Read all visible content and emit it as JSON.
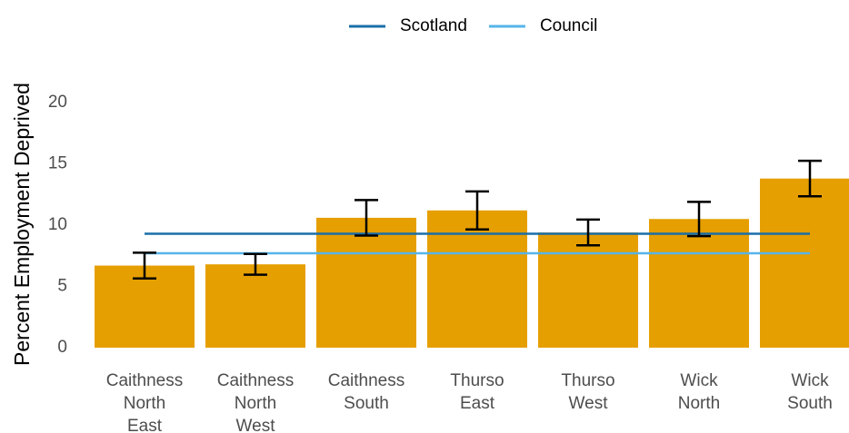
{
  "chart_data": {
    "type": "bar",
    "ylabel": "Percent Employment Deprived",
    "categories": [
      [
        "Caithness",
        "North",
        "East"
      ],
      [
        "Caithness",
        "North",
        "West"
      ],
      [
        "Caithness",
        "South"
      ],
      [
        "Thurso",
        "East"
      ],
      [
        "Thurso",
        "West"
      ],
      [
        "Wick",
        "North"
      ],
      [
        "Wick",
        "South"
      ]
    ],
    "values": [
      6.7,
      6.8,
      10.6,
      11.2,
      9.4,
      10.5,
      13.8
    ],
    "errors": [
      1.05,
      0.85,
      1.45,
      1.55,
      1.05,
      1.4,
      1.45
    ],
    "color": "#e69f00",
    "lines": [
      {
        "name": "Scotland",
        "color": "#1a6fa8",
        "value": 9.3
      },
      {
        "name": "Council",
        "color": "#56b4e9",
        "value": 7.7
      }
    ],
    "ylim": [
      0,
      23.5
    ],
    "yticks": [
      0,
      5,
      10,
      15,
      20
    ],
    "grid": false,
    "legend": "top"
  }
}
